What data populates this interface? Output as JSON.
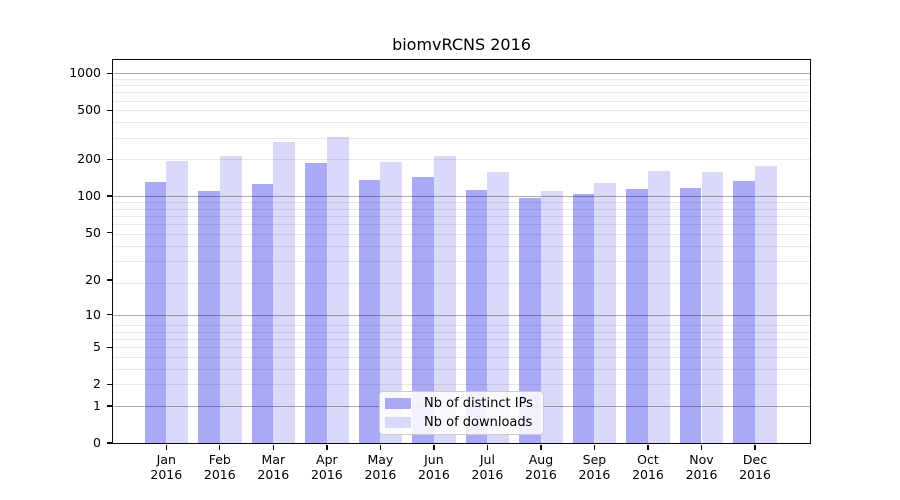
{
  "title": "biomvRCNS 2016",
  "legend": {
    "items": [
      {
        "label": "Nb of distinct IPs",
        "color": "#a9a9f7"
      },
      {
        "label": "Nb of downloads",
        "color": "#d9d9f9"
      }
    ]
  },
  "chart_data": {
    "type": "bar",
    "title": "biomvRCNS 2016",
    "categories": [
      "Jan 2016",
      "Feb 2016",
      "Mar 2016",
      "Apr 2016",
      "May 2016",
      "Jun 2016",
      "Jul 2016",
      "Aug 2016",
      "Sep 2016",
      "Oct 2016",
      "Nov 2016",
      "Dec 2016"
    ],
    "series": [
      {
        "name": "Nb of distinct IPs",
        "color": "#a9a9f7",
        "values": [
          130,
          110,
          125,
          188,
          135,
          142,
          112,
          96,
          103,
          114,
          116,
          134
        ]
      },
      {
        "name": "Nb of downloads",
        "color": "#d9d9f9",
        "values": [
          193,
          212,
          277,
          305,
          191,
          213,
          158,
          110,
          129,
          161,
          156,
          177
        ]
      }
    ],
    "yscale": "log10(value+1)",
    "yticks": [
      0,
      1,
      2,
      5,
      10,
      20,
      50,
      100,
      200,
      500,
      1000
    ],
    "ylim": [
      0,
      1280
    ],
    "grid": "horizontal",
    "grid_major_at": [
      1,
      10,
      100,
      1000
    ],
    "legend_position": "lower center"
  }
}
